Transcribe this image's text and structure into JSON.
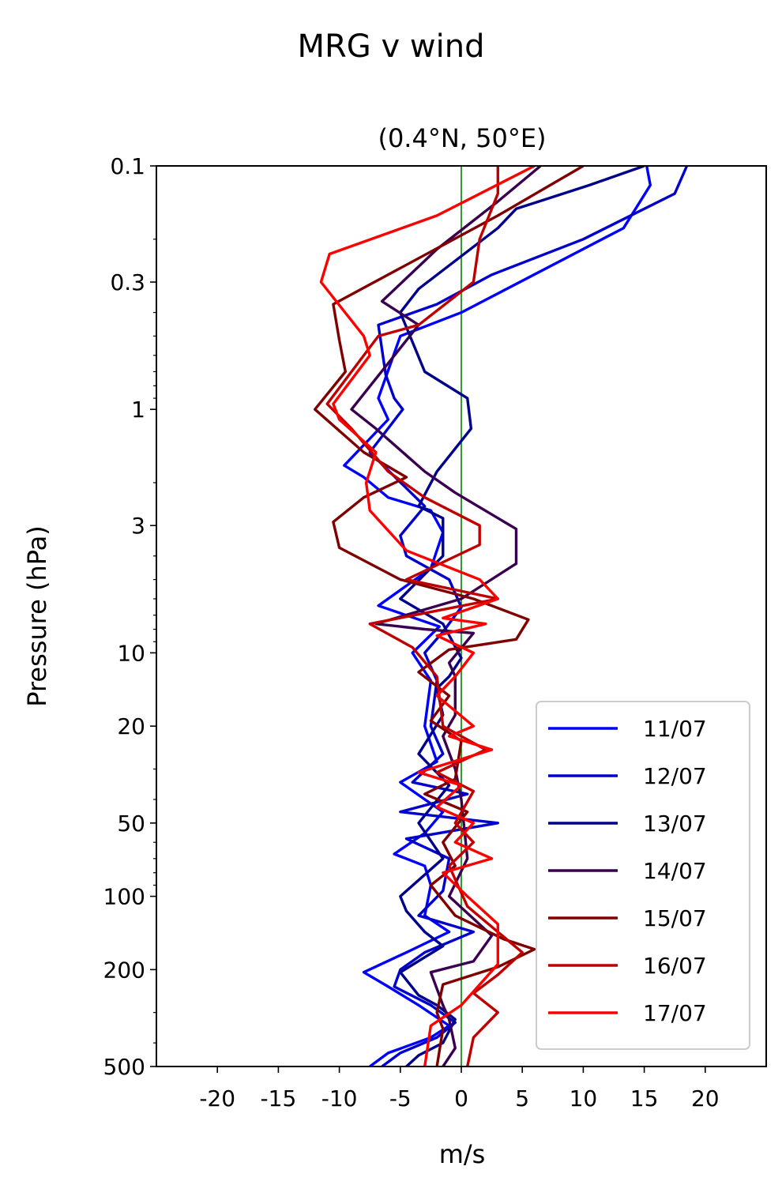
{
  "chart_data": {
    "type": "line",
    "suptitle": "MRG v wind",
    "title": "(0.4°N, 50°E)",
    "xlabel": "m/s",
    "ylabel": "Pressure (hPa)",
    "xlim": [
      -25,
      25
    ],
    "ylim": [
      500,
      0.1
    ],
    "yscale": "log",
    "xticks": [
      {
        "value": -20,
        "label": "-20"
      },
      {
        "value": -15,
        "label": "-15"
      },
      {
        "value": -10,
        "label": "-10"
      },
      {
        "value": -5,
        "label": "-5"
      },
      {
        "value": 0,
        "label": "0"
      },
      {
        "value": 5,
        "label": "5"
      },
      {
        "value": 10,
        "label": "10"
      },
      {
        "value": 15,
        "label": "15"
      },
      {
        "value": 20,
        "label": "20"
      }
    ],
    "yticks": [
      {
        "value": 0.1,
        "label": "0.1"
      },
      {
        "value": 0.3,
        "label": "0.3"
      },
      {
        "value": 1,
        "label": "1"
      },
      {
        "value": 3,
        "label": "3"
      },
      {
        "value": 10,
        "label": "10"
      },
      {
        "value": 20,
        "label": "20"
      },
      {
        "value": 50,
        "label": "50"
      },
      {
        "value": 100,
        "label": "100"
      },
      {
        "value": 200,
        "label": "200"
      },
      {
        "value": 500,
        "label": "500"
      }
    ],
    "zero_line": {
      "x": 0,
      "color": "#008000"
    },
    "legend": {
      "position": "lower-right"
    },
    "series": [
      {
        "name": "11/07",
        "color": "#0000ff",
        "points": [
          [
            15.2,
            0.1
          ],
          [
            15.5,
            0.12
          ],
          [
            13.3,
            0.18
          ],
          [
            0,
            0.4
          ],
          [
            -5,
            0.5
          ],
          [
            -6.8,
            0.9
          ],
          [
            -6,
            1.1
          ],
          [
            -9.6,
            1.7
          ],
          [
            -8,
            1.9
          ],
          [
            -6,
            2.3
          ],
          [
            -2.5,
            2.6
          ],
          [
            -1.5,
            3.2
          ],
          [
            -2.5,
            4.5
          ],
          [
            -6.8,
            6.4
          ],
          [
            -1.8,
            7.8
          ],
          [
            -4,
            10.0
          ],
          [
            -2.5,
            13.0
          ],
          [
            -3,
            20.0
          ],
          [
            -2,
            28.0
          ],
          [
            -5,
            34.0
          ],
          [
            -3,
            40.0
          ],
          [
            -1.5,
            45.0
          ],
          [
            -3,
            55.0
          ],
          [
            -5.5,
            67.0
          ],
          [
            -3,
            75.0
          ],
          [
            -2.5,
            90.0
          ],
          [
            -3,
            120.0
          ],
          [
            -1,
            140.0
          ],
          [
            -4.5,
            170.0
          ],
          [
            -8,
            205.0
          ],
          [
            -6,
            235.0
          ],
          [
            -3.5,
            280.0
          ],
          [
            -1,
            340.0
          ],
          [
            -2.5,
            380.0
          ],
          [
            -6,
            440.0
          ],
          [
            -7.5,
            500.0
          ]
        ]
      },
      {
        "name": "12/07",
        "color": "#0000cd",
        "points": [
          [
            18.5,
            0.1
          ],
          [
            17.5,
            0.13
          ],
          [
            10,
            0.2
          ],
          [
            2.5,
            0.28
          ],
          [
            -2,
            0.37
          ],
          [
            -6.8,
            0.45
          ],
          [
            -6.2,
            0.72
          ],
          [
            -5.5,
            0.9
          ],
          [
            -4.8,
            1.0
          ],
          [
            -7.5,
            1.5
          ],
          [
            -3,
            2.5
          ],
          [
            -5,
            3.3
          ],
          [
            -4.5,
            4.0
          ],
          [
            -1,
            5.0
          ],
          [
            0,
            6.5
          ],
          [
            -1.5,
            8.2
          ],
          [
            -3,
            10.0
          ],
          [
            -2,
            13.0
          ],
          [
            -2.5,
            20.0
          ],
          [
            -1.5,
            26.0
          ],
          [
            -4,
            34.0
          ],
          [
            0.5,
            38.0
          ],
          [
            -5,
            45.0
          ],
          [
            3,
            50.0
          ],
          [
            -4.5,
            58.0
          ],
          [
            -1,
            70.0
          ],
          [
            -1.5,
            95.0
          ],
          [
            -3.5,
            120.0
          ],
          [
            1,
            140.0
          ],
          [
            -3,
            170.0
          ],
          [
            -5,
            200.0
          ],
          [
            -5.5,
            235.0
          ],
          [
            -2.5,
            280.0
          ],
          [
            -0.5,
            330.0
          ],
          [
            -2,
            380.0
          ],
          [
            -5,
            440.0
          ],
          [
            -6.5,
            500.0
          ]
        ]
      },
      {
        "name": "13/07",
        "color": "#00008b",
        "points": [
          [
            15,
            0.1
          ],
          [
            10.5,
            0.12
          ],
          [
            4.5,
            0.15
          ],
          [
            3,
            0.18
          ],
          [
            -3.5,
            0.32
          ],
          [
            -5,
            0.4
          ],
          [
            -3,
            0.7
          ],
          [
            0.5,
            0.9
          ],
          [
            0.8,
            1.2
          ],
          [
            -2,
            1.8
          ],
          [
            -3.5,
            2.5
          ],
          [
            -1.5,
            2.8
          ],
          [
            -1.5,
            4.0
          ],
          [
            -5,
            6.0
          ],
          [
            -1.5,
            7.6
          ],
          [
            0,
            10.5
          ],
          [
            -1,
            12.5
          ],
          [
            -2,
            14.0
          ],
          [
            -1.5,
            18.0
          ],
          [
            -3.5,
            26.0
          ],
          [
            -1,
            35.0
          ],
          [
            -3.5,
            50.0
          ],
          [
            -1.5,
            70.0
          ],
          [
            -5,
            100.0
          ],
          [
            -4.5,
            115.0
          ],
          [
            -3,
            140.0
          ],
          [
            -1.5,
            160.0
          ],
          [
            -5,
            205.0
          ],
          [
            -3.5,
            255.0
          ],
          [
            -2,
            280.0
          ],
          [
            -0.5,
            320.0
          ],
          [
            -1.5,
            400.0
          ],
          [
            -3.5,
            450.0
          ],
          [
            -4.5,
            500.0
          ]
        ]
      },
      {
        "name": "14/07",
        "color": "#3a0050",
        "points": [
          [
            6.5,
            0.1
          ],
          [
            3,
            0.14
          ],
          [
            -2,
            0.22
          ],
          [
            -6.5,
            0.36
          ],
          [
            -3.5,
            0.45
          ],
          [
            -9,
            1.0
          ],
          [
            -7,
            1.2
          ],
          [
            -3,
            1.8
          ],
          [
            -0.5,
            2.2
          ],
          [
            4.5,
            3.1
          ],
          [
            4.5,
            4.3
          ],
          [
            0,
            6.0
          ],
          [
            -7,
            7.6
          ],
          [
            -3,
            8.0
          ],
          [
            1,
            8.3
          ],
          [
            -1,
            11.0
          ],
          [
            -0.5,
            12.5
          ],
          [
            -0.5,
            18.0
          ],
          [
            -1.5,
            22.0
          ],
          [
            -0.5,
            30.0
          ],
          [
            0,
            40.0
          ],
          [
            0.5,
            70.0
          ],
          [
            -1,
            100.0
          ],
          [
            2.5,
            145.0
          ],
          [
            1,
            185.0
          ],
          [
            -2.5,
            205.0
          ],
          [
            -1.5,
            280.0
          ],
          [
            -1,
            320.0
          ],
          [
            -0.5,
            420.0
          ],
          [
            -1.5,
            500.0
          ]
        ]
      },
      {
        "name": "15/07",
        "color": "#800000",
        "points": [
          [
            10,
            0.1
          ],
          [
            3,
            0.16
          ],
          [
            -10.5,
            0.37
          ],
          [
            -10,
            0.52
          ],
          [
            -9.5,
            0.7
          ],
          [
            -12,
            1.0
          ],
          [
            -8,
            1.5
          ],
          [
            -4.5,
            1.9
          ],
          [
            -8,
            2.3
          ],
          [
            -10.5,
            2.9
          ],
          [
            -10,
            3.7
          ],
          [
            -5,
            5.0
          ],
          [
            1,
            6.0
          ],
          [
            5.5,
            7.3
          ],
          [
            4.5,
            8.8
          ],
          [
            -1,
            9.7
          ],
          [
            -3.5,
            12.0
          ],
          [
            -1,
            15.0
          ],
          [
            -2.5,
            19.0
          ],
          [
            0,
            23.0
          ],
          [
            -0.5,
            33.0
          ],
          [
            -3,
            38.0
          ],
          [
            0.5,
            45.0
          ],
          [
            -1.5,
            60.0
          ],
          [
            -0.5,
            75.0
          ],
          [
            -2.5,
            90.0
          ],
          [
            -0.5,
            120.0
          ],
          [
            3.5,
            150.0
          ],
          [
            6,
            165.0
          ],
          [
            3,
            195.0
          ],
          [
            -1.5,
            230.0
          ],
          [
            -2,
            300.0
          ],
          [
            -1.5,
            350.0
          ],
          [
            -2,
            500.0
          ]
        ]
      },
      {
        "name": "16/07",
        "color": "#c00000",
        "points": [
          [
            3,
            0.1
          ],
          [
            3,
            0.13
          ],
          [
            1.5,
            0.2
          ],
          [
            1,
            0.3
          ],
          [
            -3.5,
            0.45
          ],
          [
            -6.8,
            0.5
          ],
          [
            -11,
            0.95
          ],
          [
            -9,
            1.2
          ],
          [
            -6,
            1.8
          ],
          [
            -3,
            2.3
          ],
          [
            1.5,
            3.0
          ],
          [
            1.5,
            3.6
          ],
          [
            -4.5,
            5.0
          ],
          [
            3,
            6.0
          ],
          [
            -7.5,
            7.6
          ],
          [
            -4,
            9.5
          ],
          [
            -2,
            12.5
          ],
          [
            -1.5,
            20.0
          ],
          [
            2,
            25.0
          ],
          [
            -2,
            31.0
          ],
          [
            1,
            37.0
          ],
          [
            -0.5,
            50.0
          ],
          [
            1,
            60.0
          ],
          [
            -1,
            75.0
          ],
          [
            0.5,
            110.0
          ],
          [
            5,
            170.0
          ],
          [
            3,
            210.0
          ],
          [
            1,
            250.0
          ],
          [
            3,
            300.0
          ],
          [
            1,
            380.0
          ],
          [
            0.5,
            500.0
          ]
        ]
      },
      {
        "name": "17/07",
        "color": "#ff0000",
        "points": [
          [
            6,
            0.1
          ],
          [
            -2,
            0.16
          ],
          [
            -10.8,
            0.23
          ],
          [
            -11.5,
            0.3
          ],
          [
            -8,
            0.5
          ],
          [
            -7.5,
            0.6
          ],
          [
            -10.5,
            0.95
          ],
          [
            -10,
            1.1
          ],
          [
            -7,
            1.5
          ],
          [
            -7.8,
            2.0
          ],
          [
            -7.5,
            2.6
          ],
          [
            -4.5,
            3.8
          ],
          [
            1.5,
            5.0
          ],
          [
            3,
            6.0
          ],
          [
            -1.5,
            7.2
          ],
          [
            2,
            7.6
          ],
          [
            -2,
            8.5
          ],
          [
            1,
            10.0
          ],
          [
            -0.5,
            12.5
          ],
          [
            -2,
            15.0
          ],
          [
            1,
            20.0
          ],
          [
            -1,
            22.0
          ],
          [
            2.5,
            25.0
          ],
          [
            -3.5,
            31.0
          ],
          [
            0,
            35.0
          ],
          [
            -2,
            43.0
          ],
          [
            1,
            50.0
          ],
          [
            -0.5,
            60.0
          ],
          [
            2.5,
            70.0
          ],
          [
            -1.5,
            80.0
          ],
          [
            0.5,
            100.0
          ],
          [
            3,
            130.0
          ],
          [
            3,
            190.0
          ],
          [
            0,
            280.0
          ],
          [
            -2.5,
            340.0
          ],
          [
            -3,
            500.0
          ]
        ]
      }
    ]
  }
}
